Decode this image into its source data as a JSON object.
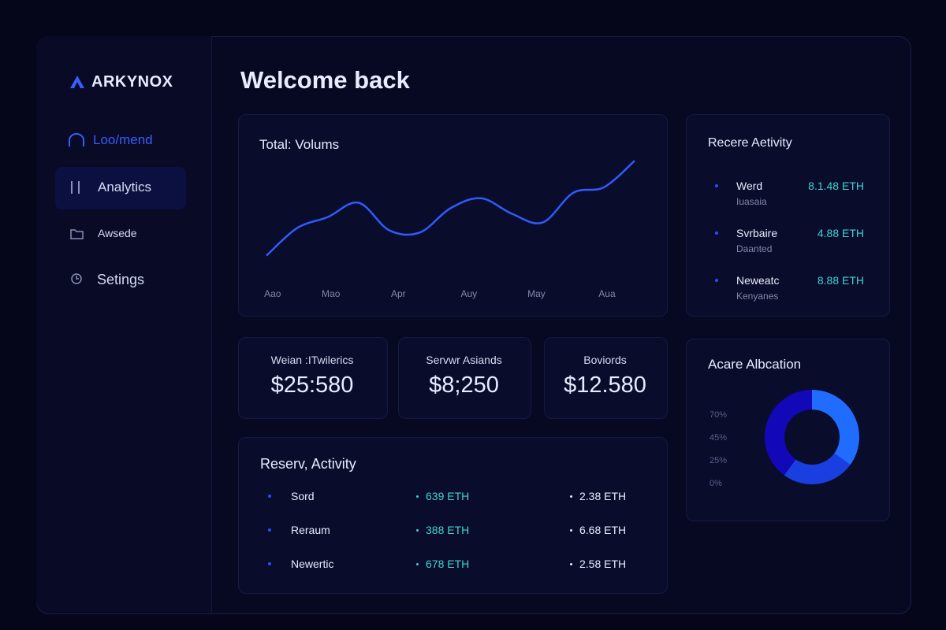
{
  "brand": "ARKYNOX",
  "nav": [
    "Loo/mend",
    "Analytics",
    "Awsede",
    "Setings"
  ],
  "header": {
    "title": "Welcome back"
  },
  "volume_chart": {
    "type": "line",
    "title": "Total: Volums",
    "x": [
      0,
      1,
      2,
      3,
      4,
      5,
      6,
      7,
      8,
      9,
      10,
      11,
      12
    ],
    "values": [
      11,
      36,
      46,
      59,
      34,
      32,
      54,
      63,
      49,
      41,
      68,
      73,
      97
    ],
    "color": "#2f5bff",
    "xlim": [
      0,
      12
    ],
    "ylim": [
      0,
      100
    ],
    "xticks": [
      {
        "value": 0.2,
        "label": "Aao"
      },
      {
        "value": 2.1,
        "label": "Mao"
      },
      {
        "value": 4.3,
        "label": "Apr"
      },
      {
        "value": 6.6,
        "label": "Auy"
      },
      {
        "value": 8.8,
        "label": "May"
      },
      {
        "value": 11.1,
        "label": "Aua"
      }
    ]
  },
  "recent_activity": {
    "title": "Recere Aetivity",
    "items": [
      {
        "name": "Werd",
        "sub": "Iuasaia",
        "amount": "8.1.48 ETH"
      },
      {
        "name": "Svrbaire",
        "sub": "Daanted",
        "amount": "4.88 ETH"
      },
      {
        "name": "Neweatc",
        "sub": "Kenyanes",
        "amount": "8.88 ETH"
      }
    ]
  },
  "stats": [
    {
      "label": "Weian :ITwilerics",
      "value": "$25:580"
    },
    {
      "label": "Servwr Asiands",
      "value": "$8;250"
    },
    {
      "label": "Boviords",
      "value": "$12.580"
    }
  ],
  "reserve_activity": {
    "title": "Reserv, Activity",
    "rows": [
      [
        "Sord",
        "639 ETH",
        "2.38 ETH"
      ],
      [
        "Reraum",
        "388 ETH",
        "6.68 ETH"
      ],
      [
        "Newertic",
        "678 ETH",
        "2.58 ETH"
      ]
    ]
  },
  "allocation": {
    "type": "pie",
    "title": "Acare Albcation",
    "scale_labels": [
      "70%",
      "45%",
      "25%",
      "0%"
    ],
    "values": [
      35,
      25,
      40
    ],
    "colors": [
      "#1f6cff",
      "#1a3fe0",
      "#1208b8"
    ]
  }
}
